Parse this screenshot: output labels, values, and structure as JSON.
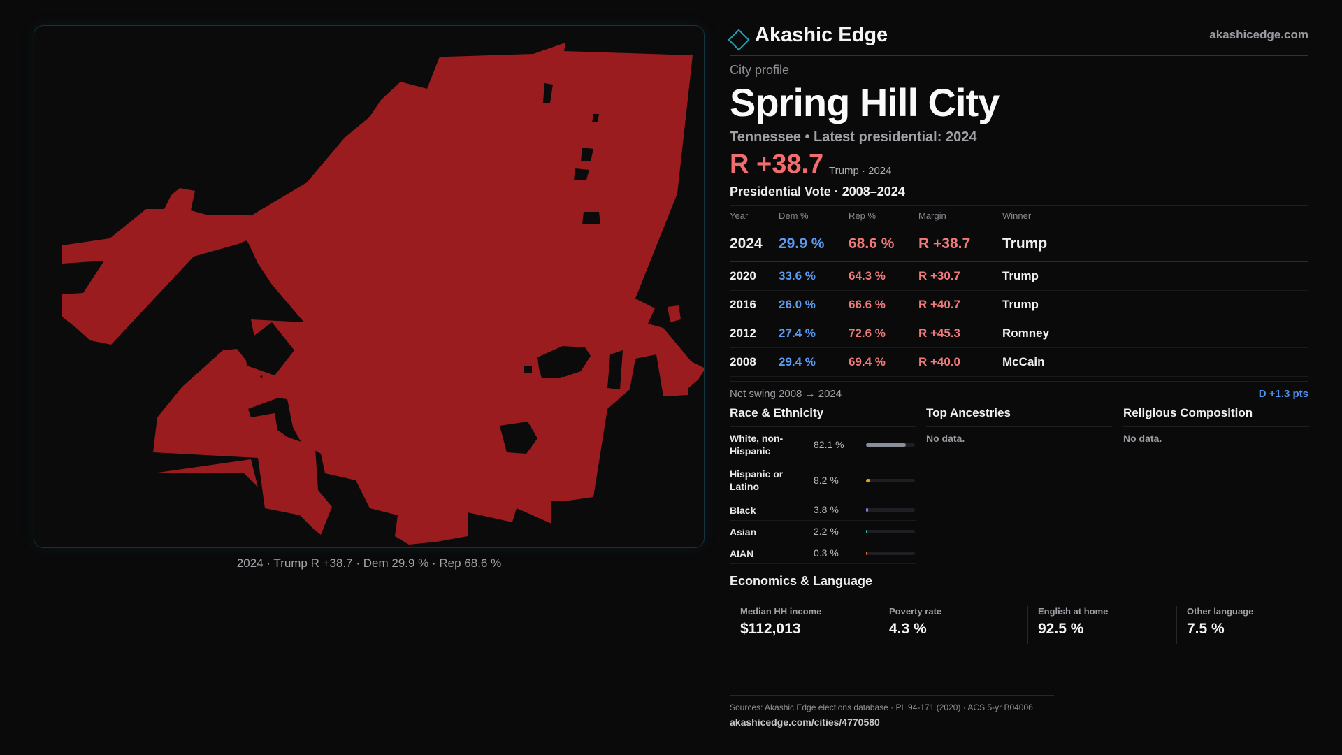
{
  "brand": {
    "name": "Akashic Edge",
    "url": "akashicedge.com"
  },
  "profile": {
    "kicker": "City profile",
    "city": "Spring Hill City",
    "subline": "Tennessee • Latest presidential: 2024",
    "headline_margin": "R +38.7",
    "headline_note": "Trump · 2024"
  },
  "map": {
    "fill_color": "#9a1c1f",
    "caption": "2024 · Trump R +38.7 · Dem 29.9 % · Rep 68.6 %"
  },
  "votes": {
    "title": "Presidential Vote · 2008–2024",
    "headers": {
      "year": "Year",
      "dem": "Dem %",
      "rep": "Rep %",
      "margin": "Margin",
      "winner": "Winner"
    },
    "rows": [
      {
        "year": "2024",
        "dem": "29.9 %",
        "rep": "68.6 %",
        "margin": "R +38.7",
        "winner": "Trump"
      },
      {
        "year": "2020",
        "dem": "33.6 %",
        "rep": "64.3 %",
        "margin": "R +30.7",
        "winner": "Trump"
      },
      {
        "year": "2016",
        "dem": "26.0 %",
        "rep": "66.6 %",
        "margin": "R +40.7",
        "winner": "Trump"
      },
      {
        "year": "2012",
        "dem": "27.4 %",
        "rep": "72.6 %",
        "margin": "R +45.3",
        "winner": "Romney"
      },
      {
        "year": "2008",
        "dem": "29.4 %",
        "rep": "69.4 %",
        "margin": "R +40.0",
        "winner": "McCain"
      }
    ],
    "swing_label": "Net swing 2008 → 2024",
    "swing_value": "D +1.3 pts"
  },
  "race": {
    "title": "Race & Ethnicity",
    "rows": [
      {
        "label": "White, non-Hispanic",
        "pct": "82.1 %",
        "value": 82.1,
        "color": "#8a8e98"
      },
      {
        "label": "Hispanic or Latino",
        "pct": "8.2 %",
        "value": 8.2,
        "color": "#e0a020"
      },
      {
        "label": "Black",
        "pct": "3.8 %",
        "value": 3.8,
        "color": "#8a7cf0"
      },
      {
        "label": "Asian",
        "pct": "2.2 %",
        "value": 2.2,
        "color": "#2fb89a"
      },
      {
        "label": "AIAN",
        "pct": "0.3 %",
        "value": 0.3,
        "color": "#e06a3a"
      }
    ]
  },
  "ancestries": {
    "title": "Top Ancestries",
    "empty": "No data."
  },
  "religion": {
    "title": "Religious Composition",
    "empty": "No data."
  },
  "economics": {
    "title": "Economics & Language",
    "cells": [
      {
        "label": "Median HH income",
        "value": "$112,013"
      },
      {
        "label": "Poverty rate",
        "value": "4.3 %"
      },
      {
        "label": "English at home",
        "value": "92.5 %"
      },
      {
        "label": "Other language",
        "value": "7.5 %"
      }
    ]
  },
  "footer": {
    "sources": "Sources: Akashic Edge elections database · PL 94-171 (2020) · ACS 5-yr B04006",
    "url": "akashicedge.com/cities/4770580"
  }
}
